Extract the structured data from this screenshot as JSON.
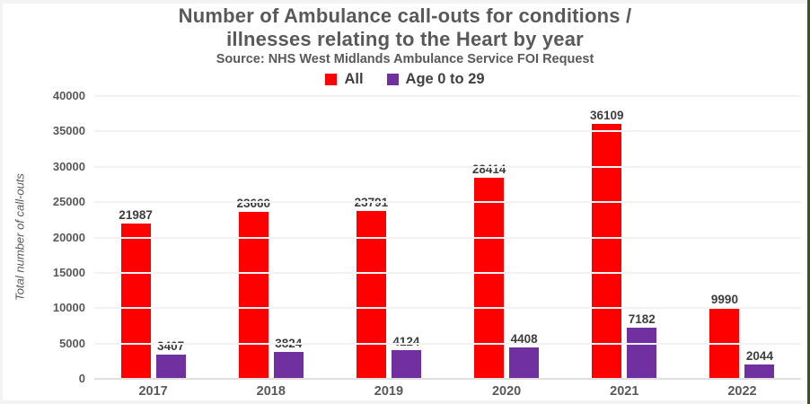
{
  "frame": {
    "right_border_color": "#375623",
    "background_color": "#ffffff",
    "gridline_color": "#f2f2f2",
    "text_color": "#595959",
    "data_label_color": "#3d3d3d"
  },
  "chart_data": {
    "type": "bar",
    "title": "Number of Ambulance call-outs for conditions / illnesses relating to the Heart by year",
    "title_lines": [
      "Number of Ambulance call-outs for conditions /",
      "illnesses relating to the Heart by year"
    ],
    "subtitle": "Source: NHS West Midlands Ambulance Service FOI Request",
    "xlabel": "",
    "ylabel": "Total number of call-outs",
    "categories": [
      "2017",
      "2018",
      "2019",
      "2020",
      "2021",
      "2022"
    ],
    "series": [
      {
        "name": "All",
        "color": "#FF0000",
        "values": [
          21987,
          23660,
          23791,
          28414,
          36109,
          9990
        ]
      },
      {
        "name": "Age 0 to 29",
        "color": "#7030A0",
        "values": [
          3407,
          3824,
          4124,
          4408,
          7182,
          2044
        ]
      }
    ],
    "data_labels": true,
    "ylim": [
      0,
      40000
    ],
    "ytick_step": 5000,
    "yticks": [
      "0",
      "5000",
      "10000",
      "15000",
      "20000",
      "25000",
      "30000",
      "35000",
      "40000"
    ],
    "grid": true,
    "legend_position": "top"
  }
}
